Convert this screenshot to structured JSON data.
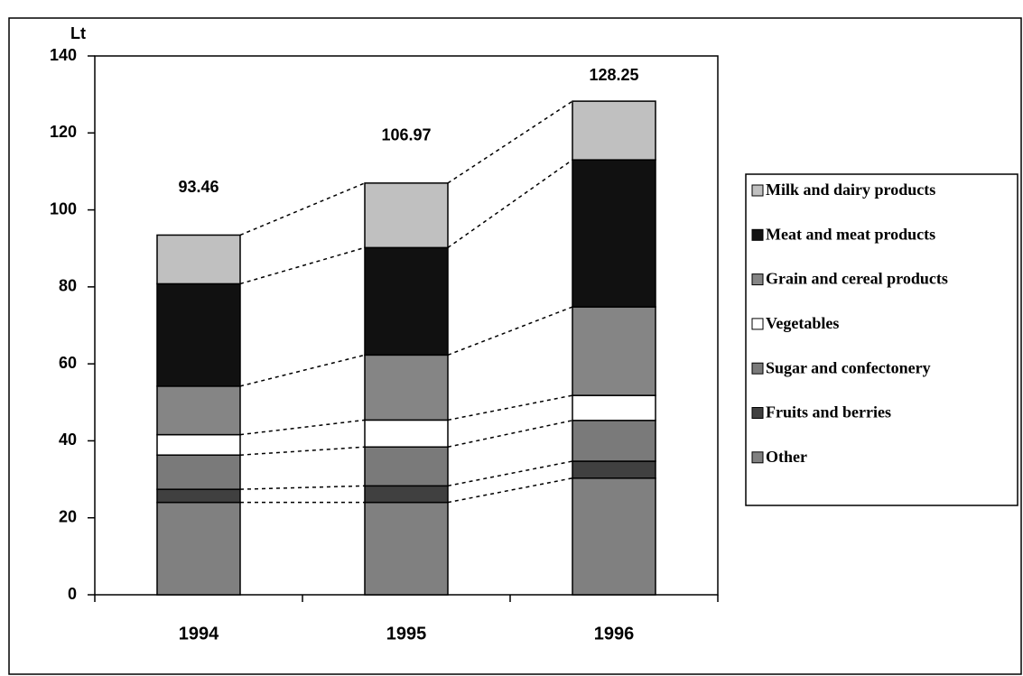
{
  "chart_data": {
    "type": "stacked_bar",
    "y_label": "Lt",
    "categories": [
      "1994",
      "1995",
      "1996"
    ],
    "totals": [
      93.46,
      106.97,
      128.25
    ],
    "series": [
      {
        "name": "Other",
        "color": "#808080",
        "values": [
          24.0,
          24.0,
          30.3
        ]
      },
      {
        "name": "Fruits and berries",
        "color": "#404040",
        "values": [
          3.4,
          4.3,
          4.4
        ]
      },
      {
        "name": "Sugar and confectonery",
        "color": "#7a7a7a",
        "values": [
          8.9,
          10.1,
          10.6
        ]
      },
      {
        "name": "Vegetables",
        "color": "#ffffff",
        "values": [
          5.3,
          7.0,
          6.5
        ]
      },
      {
        "name": "Grain and cereal products",
        "color": "#858585",
        "values": [
          12.6,
          16.9,
          23.0
        ]
      },
      {
        "name": "Meat and meat products",
        "color": "#111111",
        "values": [
          26.6,
          27.9,
          38.2
        ]
      },
      {
        "name": "Milk and dairy products",
        "color": "#c0c0c0",
        "values": [
          12.66,
          16.77,
          15.25
        ]
      }
    ],
    "ylim": [
      0,
      140
    ],
    "yticks": [
      0,
      20,
      40,
      60,
      80,
      100,
      120,
      140
    ]
  }
}
